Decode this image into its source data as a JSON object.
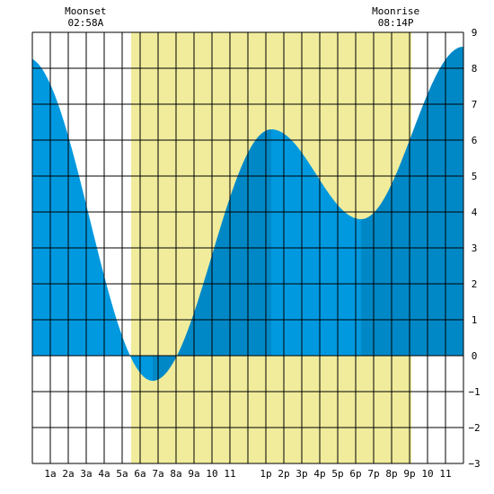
{
  "moon_events": [
    {
      "label": "Moonset",
      "time": "02:58A",
      "hour": 2.967
    },
    {
      "label": "Moonrise",
      "time": "08:14P",
      "hour": 20.233
    }
  ],
  "colors": {
    "daylight": "#f0ec9c",
    "tide_rising": "#0088c6",
    "tide_falling": "#0099e0",
    "grid": "#000000",
    "background": "#ffffff"
  },
  "chart_data": {
    "type": "area",
    "title": "",
    "xlabel": "",
    "ylabel": "",
    "xlim": [
      0,
      24
    ],
    "ylim": [
      -3,
      9
    ],
    "grid": true,
    "x_ticks": [
      {
        "h": 1,
        "label": "1a"
      },
      {
        "h": 2,
        "label": "2a"
      },
      {
        "h": 3,
        "label": "3a"
      },
      {
        "h": 4,
        "label": "4a"
      },
      {
        "h": 5,
        "label": "5a"
      },
      {
        "h": 6,
        "label": "6a"
      },
      {
        "h": 7,
        "label": "7a"
      },
      {
        "h": 8,
        "label": "8a"
      },
      {
        "h": 9,
        "label": "9a"
      },
      {
        "h": 10,
        "label": "10"
      },
      {
        "h": 11,
        "label": "11"
      },
      {
        "h": 13,
        "label": "1p"
      },
      {
        "h": 14,
        "label": "2p"
      },
      {
        "h": 15,
        "label": "3p"
      },
      {
        "h": 16,
        "label": "4p"
      },
      {
        "h": 17,
        "label": "5p"
      },
      {
        "h": 18,
        "label": "6p"
      },
      {
        "h": 19,
        "label": "7p"
      },
      {
        "h": 20,
        "label": "8p"
      },
      {
        "h": 21,
        "label": "9p"
      },
      {
        "h": 22,
        "label": "10"
      },
      {
        "h": 23,
        "label": "11"
      }
    ],
    "y_ticks": [
      -3,
      -2,
      -1,
      0,
      1,
      2,
      3,
      4,
      5,
      6,
      7,
      8,
      9
    ],
    "daylight": {
      "start": 5.5,
      "end": 21.1
    },
    "extremes": [
      {
        "h": -0.3,
        "v": 8.3
      },
      {
        "h": 6.7,
        "v": -0.7
      },
      {
        "h": 13.3,
        "v": 6.3
      },
      {
        "h": 18.3,
        "v": 3.8
      },
      {
        "h": 24.0,
        "v": 8.6
      }
    ]
  }
}
